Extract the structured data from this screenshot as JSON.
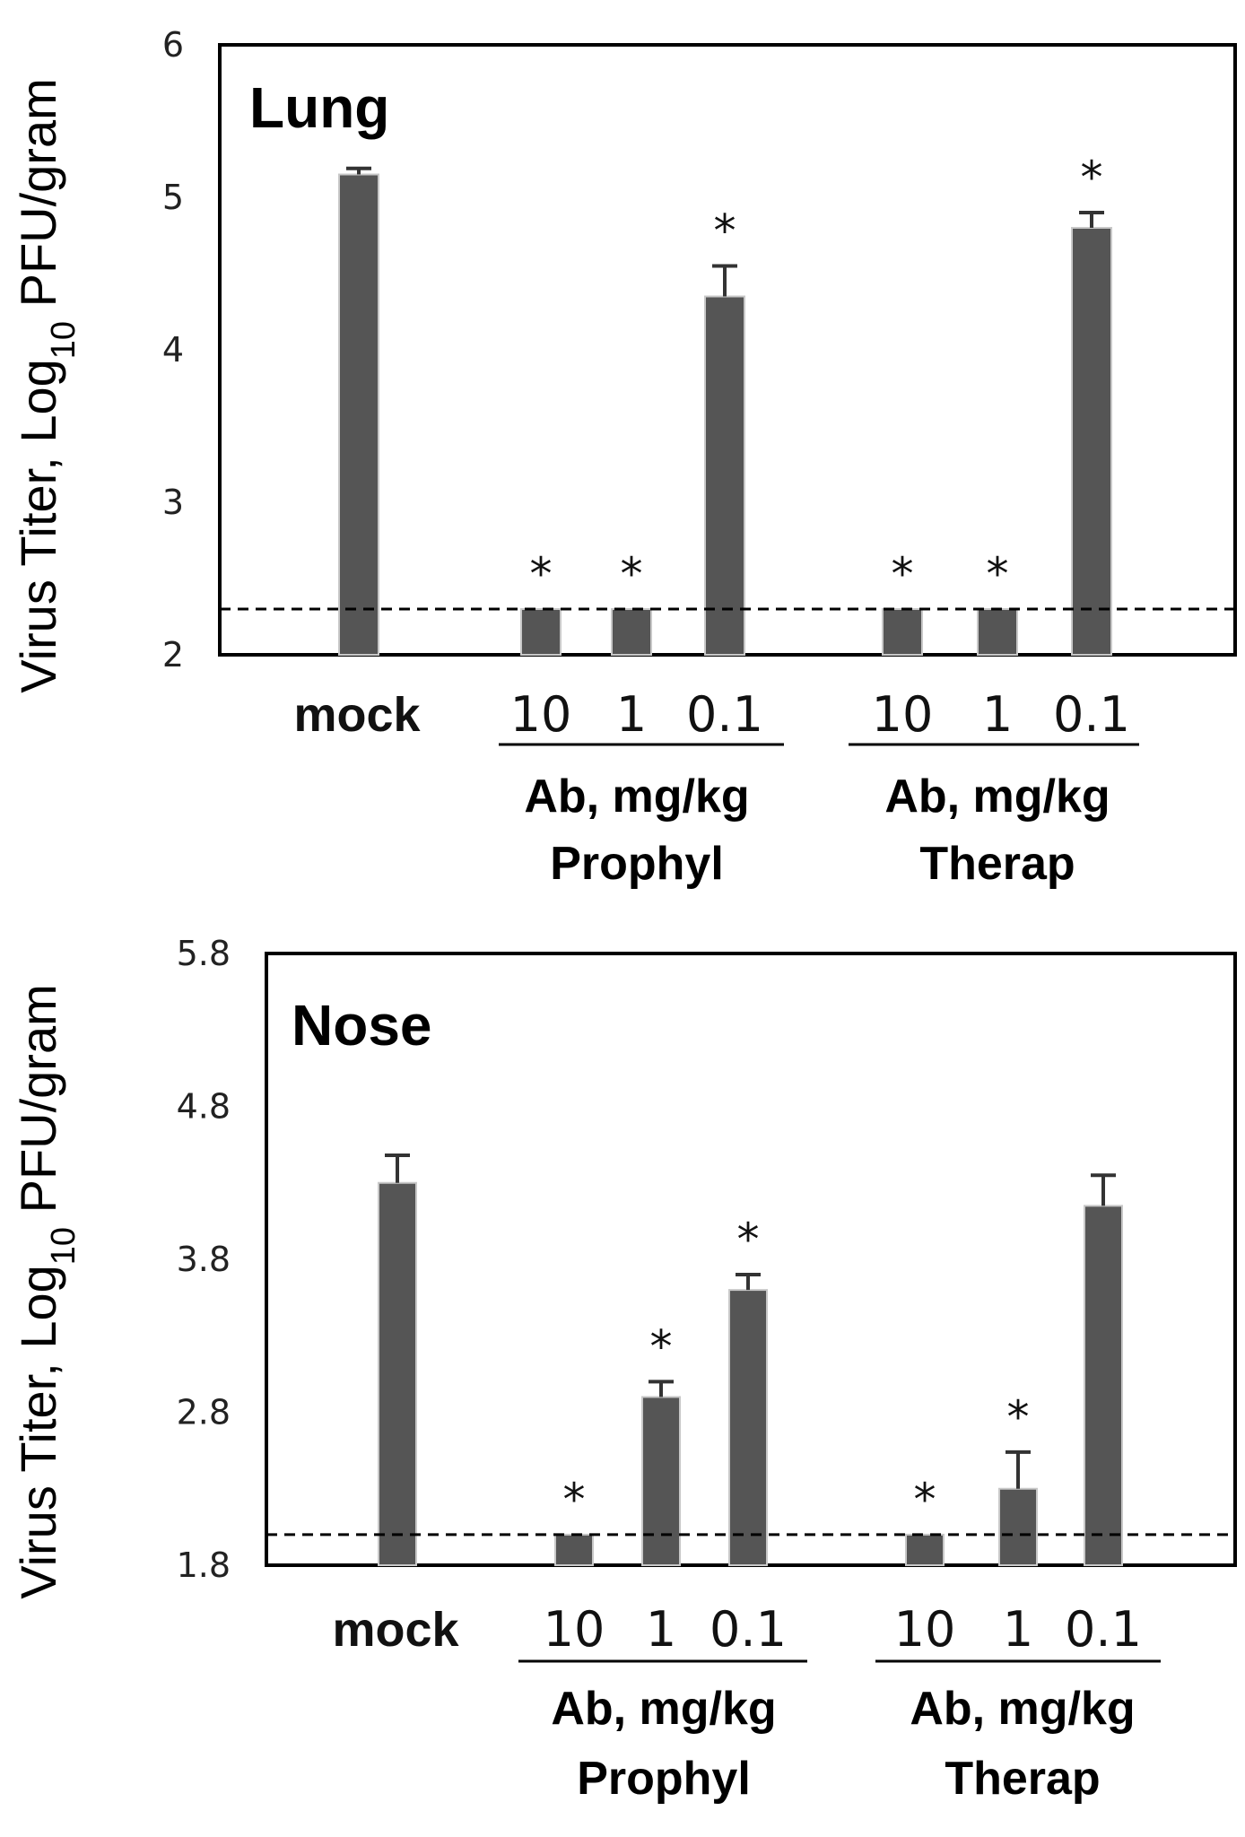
{
  "chart_data": [
    {
      "type": "bar",
      "panel_label": "Lung",
      "ylabel_parts": [
        "Virus Titer, Log",
        "10",
        " PFU/gram"
      ],
      "ylim": [
        2,
        6
      ],
      "yticks": [
        "2",
        "3",
        "4",
        "5",
        "6"
      ],
      "categories": [
        "mock",
        "10",
        "1",
        "0.1",
        "10",
        "1",
        "0.1"
      ],
      "groups": [
        {
          "name": "Prophyl",
          "line1": "Ab, mg/kg",
          "line2": "Prophyl"
        },
        {
          "name": "Therap",
          "line1": "Ab, mg/kg",
          "line2": "Therap"
        }
      ],
      "values": [
        5.15,
        2.3,
        2.3,
        4.35,
        2.3,
        2.3,
        4.8
      ],
      "errors": [
        0.04,
        0,
        0,
        0.2,
        0,
        0,
        0.1
      ],
      "significant": [
        false,
        true,
        true,
        true,
        true,
        true,
        true
      ],
      "star_symbol": "*",
      "detection_limit": 2.3
    },
    {
      "type": "bar",
      "panel_label": "Nose",
      "ylabel_parts": [
        "Virus Titer, Log",
        "10",
        " PFU/gram"
      ],
      "ylim": [
        1.8,
        5.8
      ],
      "yticks": [
        "1.8",
        "2.8",
        "3.8",
        "4.8",
        "5.8"
      ],
      "categories": [
        "mock",
        "10",
        "1",
        "0.1",
        "10",
        "1",
        "0.1"
      ],
      "groups": [
        {
          "name": "Prophyl",
          "line1": "Ab, mg/kg",
          "line2": "Prophyl"
        },
        {
          "name": "Therap",
          "line1": "Ab, mg/kg",
          "line2": "Therap"
        }
      ],
      "values": [
        4.3,
        2.0,
        2.9,
        3.6,
        2.0,
        2.3,
        4.15
      ],
      "errors": [
        0.18,
        0,
        0.1,
        0.1,
        0,
        0.24,
        0.2
      ],
      "significant": [
        false,
        true,
        true,
        true,
        true,
        true,
        false
      ],
      "star_symbol": "*",
      "detection_limit": 2.0
    }
  ]
}
